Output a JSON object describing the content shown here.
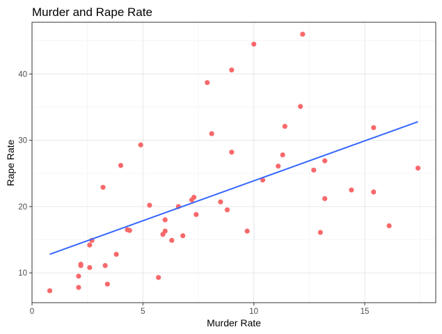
{
  "chart_data": {
    "type": "scatter",
    "title": "Murder and Rape Rate",
    "xlabel": "Murder Rate",
    "ylabel": "Rape Rate",
    "xlim": [
      0,
      18.2
    ],
    "ylim": [
      5.5,
      47.8
    ],
    "xticks": [
      0,
      5,
      10,
      15
    ],
    "yticks": [
      10,
      20,
      30,
      40
    ],
    "grid": true,
    "point_color": "#F8696B",
    "line_color": "#3366FF",
    "points": [
      {
        "x": 0.8,
        "y": 7.3
      },
      {
        "x": 2.1,
        "y": 7.8
      },
      {
        "x": 2.1,
        "y": 9.5
      },
      {
        "x": 2.2,
        "y": 11.1
      },
      {
        "x": 2.2,
        "y": 11.3
      },
      {
        "x": 2.6,
        "y": 10.8
      },
      {
        "x": 2.6,
        "y": 14.2
      },
      {
        "x": 2.7,
        "y": 14.9
      },
      {
        "x": 3.2,
        "y": 22.9
      },
      {
        "x": 3.3,
        "y": 11.1
      },
      {
        "x": 3.4,
        "y": 8.3
      },
      {
        "x": 3.8,
        "y": 12.8
      },
      {
        "x": 4.0,
        "y": 26.2
      },
      {
        "x": 4.3,
        "y": 16.5
      },
      {
        "x": 4.4,
        "y": 16.4
      },
      {
        "x": 4.9,
        "y": 29.3
      },
      {
        "x": 5.3,
        "y": 20.2
      },
      {
        "x": 5.7,
        "y": 9.3
      },
      {
        "x": 5.9,
        "y": 15.8
      },
      {
        "x": 6.0,
        "y": 16.3
      },
      {
        "x": 6.0,
        "y": 18.0
      },
      {
        "x": 6.3,
        "y": 14.9
      },
      {
        "x": 6.6,
        "y": 20.0
      },
      {
        "x": 6.8,
        "y": 15.6
      },
      {
        "x": 7.2,
        "y": 21.0
      },
      {
        "x": 7.3,
        "y": 21.4
      },
      {
        "x": 7.4,
        "y": 18.8
      },
      {
        "x": 7.9,
        "y": 38.7
      },
      {
        "x": 8.1,
        "y": 31.0
      },
      {
        "x": 8.5,
        "y": 20.7
      },
      {
        "x": 8.8,
        "y": 19.5
      },
      {
        "x": 9.0,
        "y": 40.6
      },
      {
        "x": 9.0,
        "y": 28.2
      },
      {
        "x": 9.7,
        "y": 16.3
      },
      {
        "x": 10.0,
        "y": 44.5
      },
      {
        "x": 10.4,
        "y": 24.0
      },
      {
        "x": 11.1,
        "y": 26.1
      },
      {
        "x": 11.3,
        "y": 27.8
      },
      {
        "x": 11.4,
        "y": 32.1
      },
      {
        "x": 12.1,
        "y": 35.1
      },
      {
        "x": 12.2,
        "y": 46.0
      },
      {
        "x": 12.7,
        "y": 25.5
      },
      {
        "x": 13.0,
        "y": 16.1
      },
      {
        "x": 13.2,
        "y": 26.9
      },
      {
        "x": 13.2,
        "y": 21.2
      },
      {
        "x": 14.4,
        "y": 22.5
      },
      {
        "x": 15.4,
        "y": 31.9
      },
      {
        "x": 15.4,
        "y": 22.2
      },
      {
        "x": 16.1,
        "y": 17.1
      },
      {
        "x": 17.4,
        "y": 25.8
      }
    ],
    "fit_line": {
      "x": [
        0.8,
        17.4
      ],
      "y": [
        12.8,
        32.8
      ]
    }
  }
}
